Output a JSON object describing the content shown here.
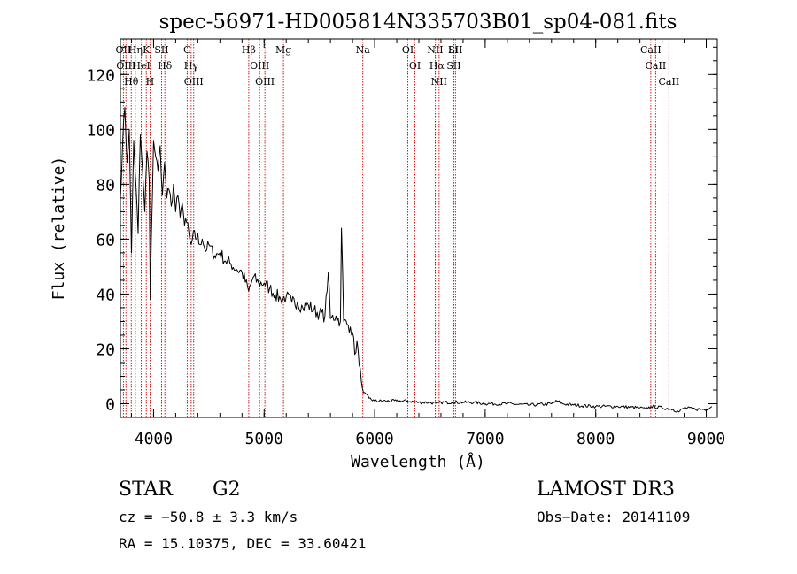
{
  "chart_data": {
    "type": "line",
    "title": "spec-56971-HD005814N335703B01_sp04-081.fits",
    "xlabel": "Wavelength (Å)",
    "ylabel": "Flux (relative)",
    "xlim": [
      3700,
      9100
    ],
    "ylim": [
      -5,
      133
    ],
    "x_ticks": [
      4000,
      5000,
      6000,
      7000,
      8000,
      9000
    ],
    "x_tick_labels": [
      "4000",
      "5000",
      "6000",
      "7000",
      "8000",
      "9000"
    ],
    "y_ticks": [
      0,
      20,
      40,
      60,
      80,
      100,
      120
    ],
    "y_tick_labels": [
      "0",
      "20",
      "40",
      "60",
      "80",
      "100",
      "120"
    ],
    "grid": false,
    "legend": "none",
    "series": [
      {
        "x": [
          3700,
          3720,
          3740,
          3760,
          3780,
          3800,
          3820,
          3840,
          3860,
          3880,
          3900,
          3920,
          3940,
          3960,
          3970,
          3980,
          4000,
          4020,
          4040,
          4060,
          4080,
          4100,
          4120,
          4140,
          4160,
          4180,
          4200,
          4220,
          4240,
          4260,
          4280,
          4300,
          4320,
          4340,
          4360,
          4380,
          4400,
          4420,
          4440,
          4460,
          4480,
          4500,
          4550,
          4600,
          4650,
          4700,
          4750,
          4800,
          4860,
          4900,
          4950,
          5000,
          5050,
          5100,
          5150,
          5200,
          5250,
          5300,
          5350,
          5400,
          5450,
          5500,
          5550,
          5580,
          5600,
          5650,
          5690,
          5700,
          5720,
          5750,
          5780,
          5800,
          5820,
          5840,
          5860,
          5880,
          5900,
          5950,
          6000,
          6100,
          6200,
          6300,
          6400,
          6500,
          6563,
          6600,
          6700,
          6800,
          6900,
          7000,
          7200,
          7400,
          7600,
          7650,
          7700,
          7800,
          8000,
          8200,
          8400,
          8450,
          8500,
          8600,
          8700,
          8750,
          8800,
          8900,
          9000,
          9050
        ],
        "y": [
          75,
          95,
          108,
          88,
          100,
          55,
          96,
          80,
          62,
          98,
          85,
          70,
          92,
          82,
          38,
          60,
          96,
          90,
          85,
          94,
          76,
          88,
          75,
          78,
          72,
          80,
          70,
          76,
          68,
          73,
          65,
          66,
          62,
          58,
          63,
          60,
          62,
          58,
          60,
          57,
          56,
          58,
          54,
          55,
          52,
          51,
          49,
          48,
          41,
          46,
          44,
          44,
          42,
          40,
          38,
          39,
          37,
          37,
          35,
          36,
          34,
          33,
          32,
          48,
          31,
          32,
          30,
          64,
          30,
          29,
          28,
          26,
          18,
          23,
          14,
          8,
          4,
          2,
          1,
          1,
          1,
          1,
          0.5,
          0.5,
          0,
          0.5,
          0.5,
          0.5,
          0.5,
          0,
          0,
          -0.5,
          0,
          1,
          0,
          -0.5,
          -1,
          -1,
          -1.5,
          -2,
          -1,
          -1.5,
          -2,
          -3,
          -1.5,
          -2,
          -2,
          -1
        ]
      }
    ],
    "line_markers": [
      {
        "x": 3727,
        "label": "OII"
      },
      {
        "x": 3750,
        "label": "OIII"
      },
      {
        "x": 3798,
        "label": "Hθ"
      },
      {
        "x": 3835,
        "label": "Hη"
      },
      {
        "x": 3889,
        "label": "HeI"
      },
      {
        "x": 3934,
        "label": "K"
      },
      {
        "x": 3968,
        "label": "H"
      },
      {
        "x": 4072,
        "label": "SII"
      },
      {
        "x": 4102,
        "label": "Hδ"
      },
      {
        "x": 4304,
        "label": "G"
      },
      {
        "x": 4340,
        "label": "Hγ"
      },
      {
        "x": 4363,
        "label": "OIII"
      },
      {
        "x": 4861,
        "label": "Hβ"
      },
      {
        "x": 4959,
        "label": "OIII"
      },
      {
        "x": 5007,
        "label": "OIII"
      },
      {
        "x": 5175,
        "label": "Mg"
      },
      {
        "x": 5893,
        "label": "Na"
      },
      {
        "x": 6300,
        "label": "OI"
      },
      {
        "x": 6364,
        "label": "OI"
      },
      {
        "x": 6548,
        "label": "NII"
      },
      {
        "x": 6563,
        "label": "Hα"
      },
      {
        "x": 6583,
        "label": "NII"
      },
      {
        "x": 6708,
        "label": "Li"
      },
      {
        "x": 6716,
        "label": "SII"
      },
      {
        "x": 6731,
        "label": "SII"
      },
      {
        "x": 8498,
        "label": "CaII"
      },
      {
        "x": 8542,
        "label": "CaII"
      },
      {
        "x": 8662,
        "label": "CaII"
      }
    ]
  },
  "info": {
    "object_type": "STAR",
    "subclass": "G2",
    "survey": "LAMOST DR3",
    "cz": "cz = −50.8 ± 3.3 km/s",
    "obs_date": "Obs−Date: 20141109",
    "coords": "RA =  15.10375, DEC =  33.60421"
  },
  "colors": {
    "spectrum": "#000000",
    "line_markers": "#cc0000",
    "axes": "#000000",
    "background": "#ffffff"
  }
}
